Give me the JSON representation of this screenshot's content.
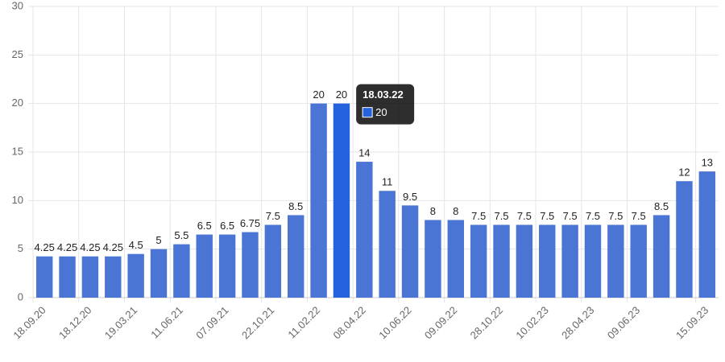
{
  "chart_data": {
    "type": "bar",
    "categories": [
      "18.09.20",
      null,
      "18.12.20",
      null,
      "19.03.21",
      null,
      "11.06.21",
      null,
      "07.09.21",
      null,
      "22.10.21",
      null,
      "11.02.22",
      null,
      "08.04.22",
      null,
      "10.06.22",
      null,
      "09.09.22",
      null,
      "28.10.22",
      null,
      "10.02.23",
      null,
      "28.04.23",
      null,
      "09.06.23",
      null,
      null,
      "15.09.23"
    ],
    "values": [
      4.25,
      4.25,
      4.25,
      4.25,
      4.5,
      5,
      5.5,
      6.5,
      6.5,
      6.75,
      7.5,
      8.5,
      20,
      20,
      14,
      11,
      9.5,
      8,
      8,
      7.5,
      7.5,
      7.5,
      7.5,
      7.5,
      7.5,
      7.5,
      7.5,
      8.5,
      12,
      13
    ],
    "color": "#4a75d4",
    "ylim": [
      0,
      30
    ],
    "yticks": [
      0,
      5,
      10,
      15,
      20,
      25,
      30
    ],
    "grid": true,
    "tooltip": {
      "title": "18.03.22",
      "color": "#2563de"
    }
  }
}
